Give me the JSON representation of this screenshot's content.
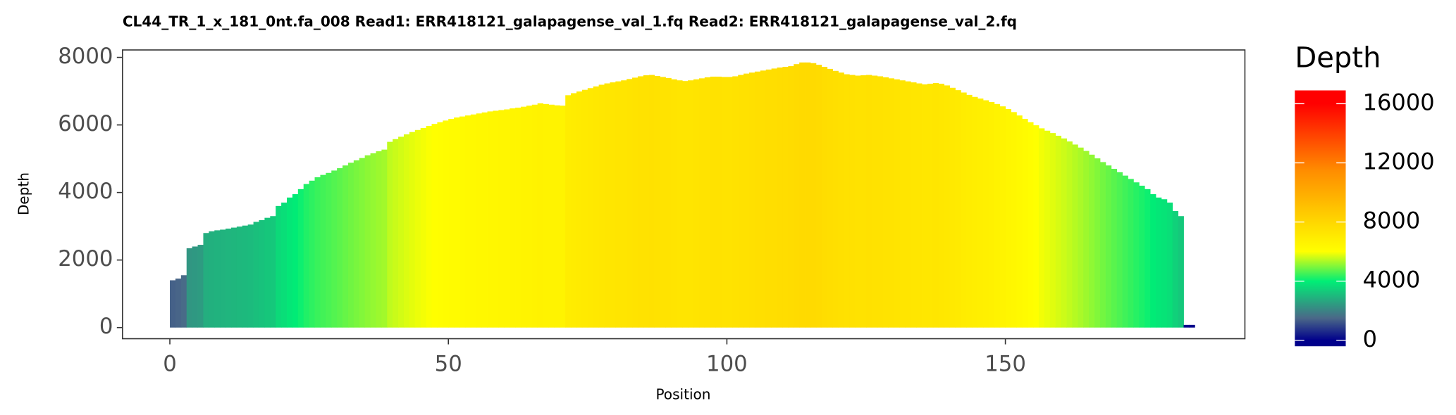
{
  "chart_data": {
    "type": "bar",
    "title": "CL44_TR_1_x_181_0nt.fa_008   Read1: ERR418121_galapagense_val_1.fq   Read2: ERR418121_galapagense_val_2.fq",
    "x_label": "Position",
    "y_label": "Depth",
    "legend_title": "Depth",
    "x": [
      0,
      1,
      2,
      3,
      4,
      5,
      6,
      7,
      8,
      9,
      10,
      11,
      12,
      13,
      14,
      15,
      16,
      17,
      18,
      19,
      20,
      21,
      22,
      23,
      24,
      25,
      26,
      27,
      28,
      29,
      30,
      31,
      32,
      33,
      34,
      35,
      36,
      37,
      38,
      39,
      40,
      41,
      42,
      43,
      44,
      45,
      46,
      47,
      48,
      49,
      50,
      51,
      52,
      53,
      54,
      55,
      56,
      57,
      58,
      59,
      60,
      61,
      62,
      63,
      64,
      65,
      66,
      67,
      68,
      69,
      70,
      71,
      72,
      73,
      74,
      75,
      76,
      77,
      78,
      79,
      80,
      81,
      82,
      83,
      84,
      85,
      86,
      87,
      88,
      89,
      90,
      91,
      92,
      93,
      94,
      95,
      96,
      97,
      98,
      99,
      100,
      101,
      102,
      103,
      104,
      105,
      106,
      107,
      108,
      109,
      110,
      111,
      112,
      113,
      114,
      115,
      116,
      117,
      118,
      119,
      120,
      121,
      122,
      123,
      124,
      125,
      126,
      127,
      128,
      129,
      130,
      131,
      132,
      133,
      134,
      135,
      136,
      137,
      138,
      139,
      140,
      141,
      142,
      143,
      144,
      145,
      146,
      147,
      148,
      149,
      150,
      151,
      152,
      153,
      154,
      155,
      156,
      157,
      158,
      159,
      160,
      161,
      162,
      163,
      164,
      165,
      166,
      167,
      168,
      169,
      170,
      171,
      172,
      173,
      174,
      175,
      176,
      177,
      178,
      179,
      180,
      181,
      182,
      183
    ],
    "values": [
      1400,
      1450,
      1550,
      2350,
      2400,
      2450,
      2800,
      2850,
      2880,
      2900,
      2930,
      2960,
      2990,
      3020,
      3050,
      3130,
      3180,
      3250,
      3300,
      3600,
      3700,
      3850,
      3950,
      4100,
      4250,
      4350,
      4450,
      4520,
      4580,
      4650,
      4720,
      4800,
      4880,
      4950,
      5020,
      5100,
      5160,
      5220,
      5270,
      5500,
      5580,
      5650,
      5720,
      5790,
      5850,
      5910,
      5970,
      6030,
      6080,
      6130,
      6180,
      6220,
      6250,
      6280,
      6310,
      6340,
      6370,
      6400,
      6420,
      6440,
      6460,
      6490,
      6510,
      6540,
      6570,
      6600,
      6640,
      6620,
      6600,
      6580,
      6570,
      6880,
      6940,
      6990,
      7040,
      7090,
      7140,
      7190,
      7230,
      7260,
      7290,
      7320,
      7360,
      7400,
      7440,
      7470,
      7480,
      7450,
      7420,
      7390,
      7350,
      7320,
      7300,
      7320,
      7350,
      7380,
      7410,
      7430,
      7430,
      7420,
      7420,
      7440,
      7480,
      7520,
      7550,
      7580,
      7610,
      7640,
      7670,
      7700,
      7720,
      7740,
      7800,
      7850,
      7850,
      7830,
      7780,
      7720,
      7660,
      7600,
      7550,
      7500,
      7480,
      7460,
      7470,
      7480,
      7460,
      7440,
      7410,
      7380,
      7350,
      7320,
      7290,
      7260,
      7230,
      7200,
      7220,
      7240,
      7220,
      7170,
      7100,
      7030,
      6960,
      6890,
      6830,
      6780,
      6730,
      6680,
      6620,
      6550,
      6470,
      6380,
      6280,
      6180,
      6080,
      5990,
      5900,
      5830,
      5760,
      5680,
      5600,
      5510,
      5420,
      5330,
      5230,
      5120,
      5010,
      4900,
      4800,
      4700,
      4600,
      4500,
      4400,
      4300,
      4200,
      4100,
      3950,
      3850,
      3800,
      3700,
      3450,
      3300,
      80,
      80
    ],
    "xlim": [
      -8.5,
      193
    ],
    "xticks": [
      0,
      50,
      100,
      150
    ],
    "ylim": [
      -330,
      8220
    ],
    "yticks": [
      0,
      2000,
      4000,
      6000,
      8000
    ],
    "color_scale": [
      {
        "value": 0,
        "color": "#00008b"
      },
      {
        "value": 1500,
        "color": "#4a6888"
      },
      {
        "value": 4000,
        "color": "#00ee76"
      },
      {
        "value": 6000,
        "color": "#ffff00"
      },
      {
        "value": 8000,
        "color": "#ffd700"
      },
      {
        "value": 11500,
        "color": "#ff8c00"
      },
      {
        "value": 16000,
        "color": "#ff0000"
      }
    ],
    "clim": [
      -400,
      16900
    ],
    "cticks": [
      0,
      4000,
      8000,
      12000,
      16000
    ],
    "grid": false
  }
}
